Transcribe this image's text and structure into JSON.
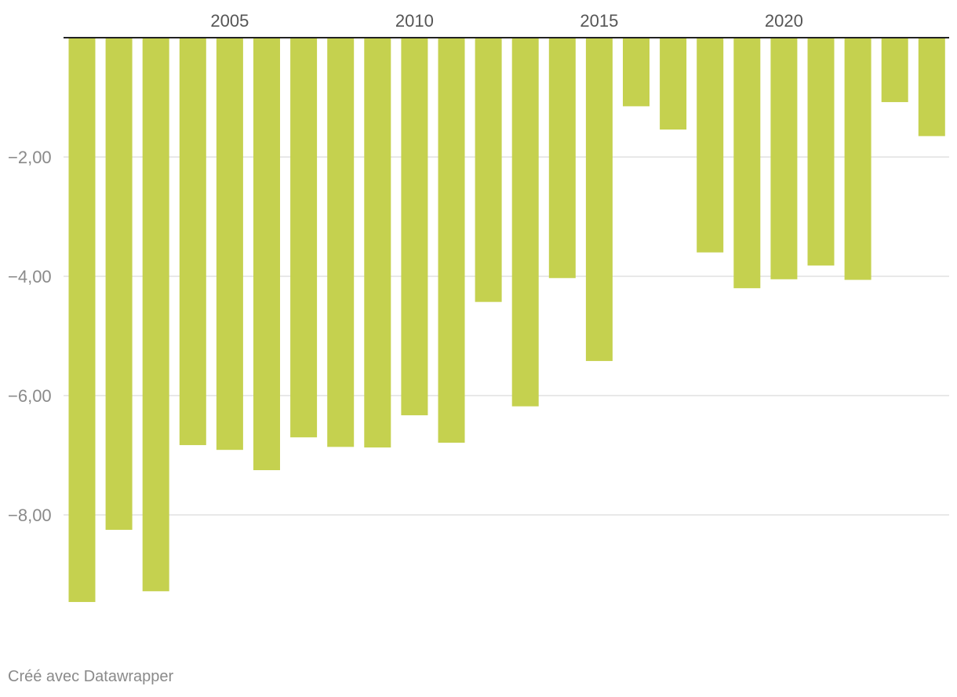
{
  "chart_data": {
    "type": "bar",
    "title": "",
    "xlabel": "",
    "ylabel": "",
    "categories": [
      2001,
      2002,
      2003,
      2004,
      2005,
      2006,
      2007,
      2008,
      2009,
      2010,
      2011,
      2012,
      2013,
      2014,
      2015,
      2016,
      2017,
      2018,
      2019,
      2020,
      2021,
      2022,
      2023,
      2024
    ],
    "values": [
      -9.46,
      -8.25,
      -9.28,
      -6.83,
      -6.91,
      -7.25,
      -6.7,
      -6.86,
      -6.87,
      -6.33,
      -6.79,
      -4.43,
      -6.18,
      -4.03,
      -5.42,
      -1.15,
      -1.54,
      -3.6,
      -4.2,
      -4.05,
      -3.82,
      -4.06,
      -1.08,
      -1.65
    ],
    "x_ticks": [
      2005,
      2010,
      2015,
      2020
    ],
    "x_tick_labels": [
      "2005",
      "2010",
      "2015",
      "2020"
    ],
    "y_ticks": [
      -2,
      -4,
      -6,
      -8
    ],
    "y_tick_labels": [
      "−2,00",
      "−4,00",
      "−6,00",
      "−8,00"
    ],
    "ylim": [
      -10.5,
      0
    ],
    "grid": true,
    "bar_color": "#c5d14f",
    "grid_color": "#e1e1e1",
    "baseline_color": "#222222"
  },
  "credit": "Créé avec Datawrapper"
}
